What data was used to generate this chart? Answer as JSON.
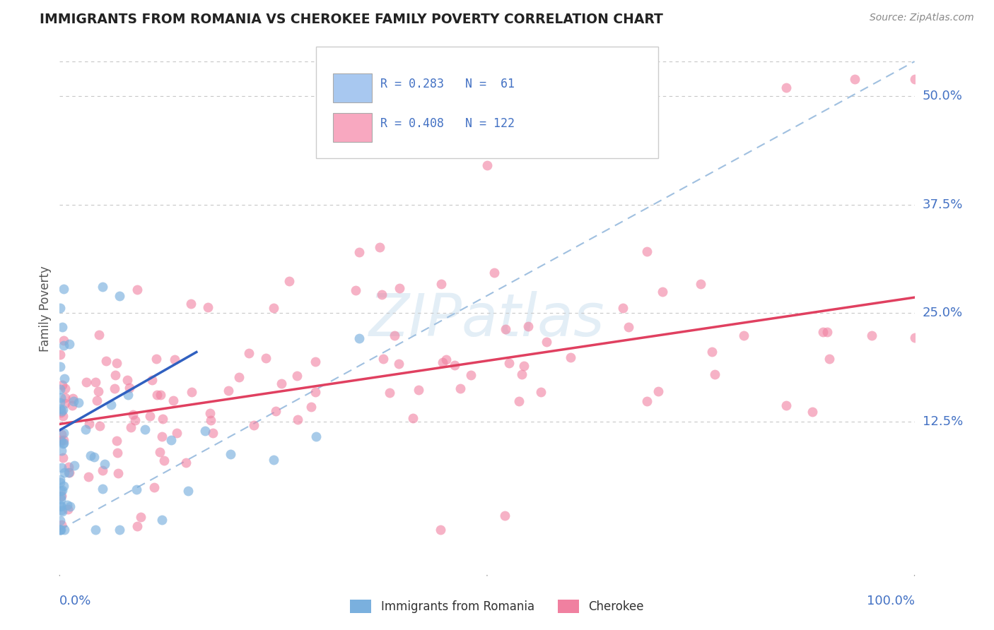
{
  "title": "IMMIGRANTS FROM ROMANIA VS CHEROKEE FAMILY POVERTY CORRELATION CHART",
  "source": "Source: ZipAtlas.com",
  "ylabel": "Family Poverty",
  "ytick_labels": [
    "12.5%",
    "25.0%",
    "37.5%",
    "50.0%"
  ],
  "ytick_values": [
    0.125,
    0.25,
    0.375,
    0.5
  ],
  "xlim": [
    0.0,
    1.0
  ],
  "ylim": [
    -0.05,
    0.56
  ],
  "watermark": "ZIPatlas",
  "romania_color": "#7ab0de",
  "cherokee_color": "#f080a0",
  "romania_line_color": "#3060c0",
  "cherokee_line_color": "#e04060",
  "dashed_line_color": "#a0c0e0",
  "background_color": "#ffffff",
  "grid_color": "#c8c8c8",
  "title_color": "#222222",
  "axis_label_color": "#4472c4",
  "legend_box_color_romania": "#a8c8f0",
  "legend_box_color_cherokee": "#f8a8c0"
}
